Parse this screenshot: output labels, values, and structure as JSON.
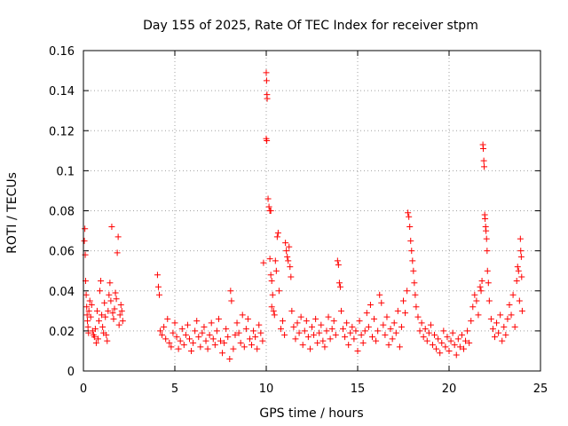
{
  "chart_data": {
    "type": "scatter",
    "title": "Day 155 of 2025, Rate Of TEC Index for receiver stpm",
    "xlabel": "GPS time / hours",
    "ylabel": "ROTI / TECUs",
    "xlim": [
      0,
      25
    ],
    "ylim": [
      0,
      0.16
    ],
    "x_ticks": [
      0,
      5,
      10,
      15,
      20,
      25
    ],
    "x_tick_labels": [
      "0",
      "5",
      "10",
      "15",
      "20",
      "25"
    ],
    "y_ticks": [
      0,
      0.02,
      0.04,
      0.06,
      0.08,
      0.1,
      0.12,
      0.14,
      0.16
    ],
    "y_tick_labels": [
      "0",
      "0.02",
      "0.04",
      "0.06",
      "0.08",
      "0.1",
      "0.12",
      "0.14",
      "0.16"
    ],
    "grid": true,
    "marker": "+",
    "color": "#ff0000",
    "series": [
      {
        "name": "ROTI",
        "points": [
          [
            0.05,
            0.065
          ],
          [
            0.08,
            0.071
          ],
          [
            0.1,
            0.058
          ],
          [
            0.12,
            0.045
          ],
          [
            0.15,
            0.038
          ],
          [
            0.18,
            0.032
          ],
          [
            0.2,
            0.028
          ],
          [
            0.22,
            0.025
          ],
          [
            0.25,
            0.022
          ],
          [
            0.28,
            0.019
          ],
          [
            0.3,
            0.03
          ],
          [
            0.35,
            0.035
          ],
          [
            0.4,
            0.027
          ],
          [
            0.45,
            0.033
          ],
          [
            0.5,
            0.02
          ],
          [
            0.55,
            0.018
          ],
          [
            0.6,
            0.017
          ],
          [
            0.65,
            0.021
          ],
          [
            0.7,
            0.014
          ],
          [
            0.75,
            0.03
          ],
          [
            0.8,
            0.016
          ],
          [
            0.85,
            0.025
          ],
          [
            0.9,
            0.04
          ],
          [
            0.95,
            0.045
          ],
          [
            1.0,
            0.028
          ],
          [
            1.05,
            0.022
          ],
          [
            1.1,
            0.019
          ],
          [
            1.15,
            0.034
          ],
          [
            1.2,
            0.027
          ],
          [
            1.25,
            0.018
          ],
          [
            1.3,
            0.015
          ],
          [
            1.35,
            0.03
          ],
          [
            1.4,
            0.038
          ],
          [
            1.45,
            0.044
          ],
          [
            1.5,
            0.035
          ],
          [
            1.55,
            0.072
          ],
          [
            1.6,
            0.029
          ],
          [
            1.65,
            0.026
          ],
          [
            1.7,
            0.031
          ],
          [
            1.75,
            0.039
          ],
          [
            1.8,
            0.036
          ],
          [
            1.85,
            0.059
          ],
          [
            1.9,
            0.067
          ],
          [
            1.95,
            0.023
          ],
          [
            2.0,
            0.028
          ],
          [
            2.05,
            0.033
          ],
          [
            2.1,
            0.03
          ],
          [
            2.15,
            0.025
          ],
          [
            4.05,
            0.048
          ],
          [
            4.1,
            0.042
          ],
          [
            4.15,
            0.038
          ],
          [
            4.2,
            0.02
          ],
          [
            4.3,
            0.018
          ],
          [
            4.4,
            0.022
          ],
          [
            4.5,
            0.016
          ],
          [
            4.6,
            0.026
          ],
          [
            4.7,
            0.014
          ],
          [
            4.8,
            0.012
          ],
          [
            4.9,
            0.019
          ],
          [
            5.0,
            0.024
          ],
          [
            5.1,
            0.017
          ],
          [
            5.2,
            0.011
          ],
          [
            5.3,
            0.015
          ],
          [
            5.4,
            0.021
          ],
          [
            5.5,
            0.013
          ],
          [
            5.6,
            0.018
          ],
          [
            5.7,
            0.023
          ],
          [
            5.8,
            0.016
          ],
          [
            5.9,
            0.01
          ],
          [
            6.0,
            0.014
          ],
          [
            6.1,
            0.02
          ],
          [
            6.2,
            0.025
          ],
          [
            6.3,
            0.017
          ],
          [
            6.4,
            0.012
          ],
          [
            6.5,
            0.019
          ],
          [
            6.6,
            0.022
          ],
          [
            6.7,
            0.015
          ],
          [
            6.8,
            0.011
          ],
          [
            6.9,
            0.018
          ],
          [
            7.0,
            0.024
          ],
          [
            7.1,
            0.016
          ],
          [
            7.2,
            0.013
          ],
          [
            7.3,
            0.02
          ],
          [
            7.4,
            0.026
          ],
          [
            7.5,
            0.015
          ],
          [
            7.6,
            0.009
          ],
          [
            7.7,
            0.014
          ],
          [
            7.8,
            0.021
          ],
          [
            7.9,
            0.017
          ],
          [
            8.0,
            0.006
          ],
          [
            8.05,
            0.04
          ],
          [
            8.1,
            0.035
          ],
          [
            8.2,
            0.011
          ],
          [
            8.3,
            0.018
          ],
          [
            8.4,
            0.024
          ],
          [
            8.5,
            0.019
          ],
          [
            8.6,
            0.014
          ],
          [
            8.7,
            0.028
          ],
          [
            8.8,
            0.012
          ],
          [
            8.9,
            0.021
          ],
          [
            9.0,
            0.026
          ],
          [
            9.1,
            0.016
          ],
          [
            9.2,
            0.013
          ],
          [
            9.3,
            0.02
          ],
          [
            9.4,
            0.017
          ],
          [
            9.5,
            0.011
          ],
          [
            9.6,
            0.023
          ],
          [
            9.7,
            0.019
          ],
          [
            9.8,
            0.015
          ],
          [
            9.85,
            0.054
          ],
          [
            10.0,
            0.149
          ],
          [
            10.02,
            0.145
          ],
          [
            10.04,
            0.138
          ],
          [
            10.05,
            0.136
          ],
          [
            10.0,
            0.116
          ],
          [
            10.03,
            0.115
          ],
          [
            10.1,
            0.086
          ],
          [
            10.15,
            0.082
          ],
          [
            10.2,
            0.08
          ],
          [
            10.25,
            0.08
          ],
          [
            10.2,
            0.056
          ],
          [
            10.25,
            0.048
          ],
          [
            10.3,
            0.045
          ],
          [
            10.35,
            0.038
          ],
          [
            10.3,
            0.032
          ],
          [
            10.4,
            0.03
          ],
          [
            10.45,
            0.028
          ],
          [
            10.5,
            0.055
          ],
          [
            10.55,
            0.05
          ],
          [
            10.6,
            0.067
          ],
          [
            10.65,
            0.069
          ],
          [
            10.7,
            0.04
          ],
          [
            10.8,
            0.021
          ],
          [
            10.9,
            0.025
          ],
          [
            11.0,
            0.018
          ],
          [
            11.05,
            0.064
          ],
          [
            11.1,
            0.06
          ],
          [
            11.15,
            0.057
          ],
          [
            11.2,
            0.055
          ],
          [
            11.25,
            0.062
          ],
          [
            11.3,
            0.052
          ],
          [
            11.35,
            0.047
          ],
          [
            11.4,
            0.03
          ],
          [
            11.5,
            0.022
          ],
          [
            11.6,
            0.016
          ],
          [
            11.7,
            0.024
          ],
          [
            11.8,
            0.019
          ],
          [
            11.9,
            0.027
          ],
          [
            12.0,
            0.013
          ],
          [
            12.1,
            0.02
          ],
          [
            12.2,
            0.025
          ],
          [
            12.3,
            0.017
          ],
          [
            12.4,
            0.011
          ],
          [
            12.5,
            0.022
          ],
          [
            12.6,
            0.018
          ],
          [
            12.7,
            0.026
          ],
          [
            12.8,
            0.014
          ],
          [
            12.9,
            0.019
          ],
          [
            13.0,
            0.023
          ],
          [
            13.1,
            0.015
          ],
          [
            13.2,
            0.012
          ],
          [
            13.3,
            0.02
          ],
          [
            13.4,
            0.027
          ],
          [
            13.5,
            0.016
          ],
          [
            13.6,
            0.021
          ],
          [
            13.7,
            0.025
          ],
          [
            13.8,
            0.018
          ],
          [
            13.9,
            0.055
          ],
          [
            13.95,
            0.053
          ],
          [
            14.0,
            0.044
          ],
          [
            14.05,
            0.042
          ],
          [
            14.1,
            0.03
          ],
          [
            14.2,
            0.021
          ],
          [
            14.3,
            0.017
          ],
          [
            14.4,
            0.024
          ],
          [
            14.5,
            0.013
          ],
          [
            14.6,
            0.019
          ],
          [
            14.7,
            0.022
          ],
          [
            14.8,
            0.016
          ],
          [
            14.9,
            0.02
          ],
          [
            15.0,
            0.01
          ],
          [
            15.1,
            0.025
          ],
          [
            15.2,
            0.018
          ],
          [
            15.3,
            0.014
          ],
          [
            15.4,
            0.02
          ],
          [
            15.5,
            0.029
          ],
          [
            15.6,
            0.022
          ],
          [
            15.7,
            0.033
          ],
          [
            15.8,
            0.017
          ],
          [
            15.9,
            0.026
          ],
          [
            16.0,
            0.015
          ],
          [
            16.1,
            0.02
          ],
          [
            16.2,
            0.038
          ],
          [
            16.3,
            0.034
          ],
          [
            16.4,
            0.023
          ],
          [
            16.5,
            0.018
          ],
          [
            16.6,
            0.027
          ],
          [
            16.7,
            0.013
          ],
          [
            16.8,
            0.021
          ],
          [
            16.9,
            0.016
          ],
          [
            17.0,
            0.024
          ],
          [
            17.1,
            0.019
          ],
          [
            17.2,
            0.03
          ],
          [
            17.3,
            0.012
          ],
          [
            17.4,
            0.022
          ],
          [
            17.5,
            0.035
          ],
          [
            17.6,
            0.029
          ],
          [
            17.7,
            0.04
          ],
          [
            17.75,
            0.079
          ],
          [
            17.8,
            0.077
          ],
          [
            17.85,
            0.072
          ],
          [
            17.9,
            0.065
          ],
          [
            17.95,
            0.06
          ],
          [
            18.0,
            0.055
          ],
          [
            18.05,
            0.05
          ],
          [
            18.1,
            0.044
          ],
          [
            18.15,
            0.038
          ],
          [
            18.2,
            0.032
          ],
          [
            18.3,
            0.027
          ],
          [
            18.4,
            0.02
          ],
          [
            18.5,
            0.024
          ],
          [
            18.6,
            0.017
          ],
          [
            18.7,
            0.021
          ],
          [
            18.8,
            0.015
          ],
          [
            18.9,
            0.019
          ],
          [
            19.0,
            0.023
          ],
          [
            19.1,
            0.013
          ],
          [
            19.2,
            0.018
          ],
          [
            19.3,
            0.011
          ],
          [
            19.4,
            0.016
          ],
          [
            19.5,
            0.009
          ],
          [
            19.6,
            0.014
          ],
          [
            19.7,
            0.02
          ],
          [
            19.8,
            0.012
          ],
          [
            19.9,
            0.017
          ],
          [
            20.0,
            0.01
          ],
          [
            20.1,
            0.015
          ],
          [
            20.2,
            0.019
          ],
          [
            20.3,
            0.013
          ],
          [
            20.4,
            0.008
          ],
          [
            20.5,
            0.016
          ],
          [
            20.6,
            0.012
          ],
          [
            20.7,
            0.018
          ],
          [
            20.8,
            0.011
          ],
          [
            20.9,
            0.015
          ],
          [
            21.0,
            0.02
          ],
          [
            21.1,
            0.014
          ],
          [
            21.2,
            0.025
          ],
          [
            21.3,
            0.032
          ],
          [
            21.4,
            0.038
          ],
          [
            21.5,
            0.035
          ],
          [
            21.6,
            0.028
          ],
          [
            21.7,
            0.042
          ],
          [
            21.75,
            0.04
          ],
          [
            21.8,
            0.045
          ],
          [
            21.85,
            0.113
          ],
          [
            21.87,
            0.111
          ],
          [
            21.9,
            0.105
          ],
          [
            21.92,
            0.102
          ],
          [
            21.95,
            0.078
          ],
          [
            21.97,
            0.076
          ],
          [
            22.0,
            0.072
          ],
          [
            22.02,
            0.07
          ],
          [
            22.05,
            0.066
          ],
          [
            22.08,
            0.06
          ],
          [
            22.1,
            0.05
          ],
          [
            22.15,
            0.044
          ],
          [
            22.2,
            0.035
          ],
          [
            22.3,
            0.026
          ],
          [
            22.4,
            0.021
          ],
          [
            22.5,
            0.017
          ],
          [
            22.6,
            0.024
          ],
          [
            22.7,
            0.019
          ],
          [
            22.8,
            0.028
          ],
          [
            22.9,
            0.015
          ],
          [
            23.0,
            0.022
          ],
          [
            23.1,
            0.018
          ],
          [
            23.2,
            0.026
          ],
          [
            23.3,
            0.033
          ],
          [
            23.4,
            0.028
          ],
          [
            23.5,
            0.038
          ],
          [
            23.6,
            0.022
          ],
          [
            23.7,
            0.045
          ],
          [
            23.75,
            0.052
          ],
          [
            23.8,
            0.05
          ],
          [
            23.85,
            0.035
          ],
          [
            23.9,
            0.066
          ],
          [
            23.92,
            0.06
          ],
          [
            23.95,
            0.057
          ],
          [
            23.97,
            0.047
          ],
          [
            24.0,
            0.03
          ]
        ]
      }
    ]
  }
}
